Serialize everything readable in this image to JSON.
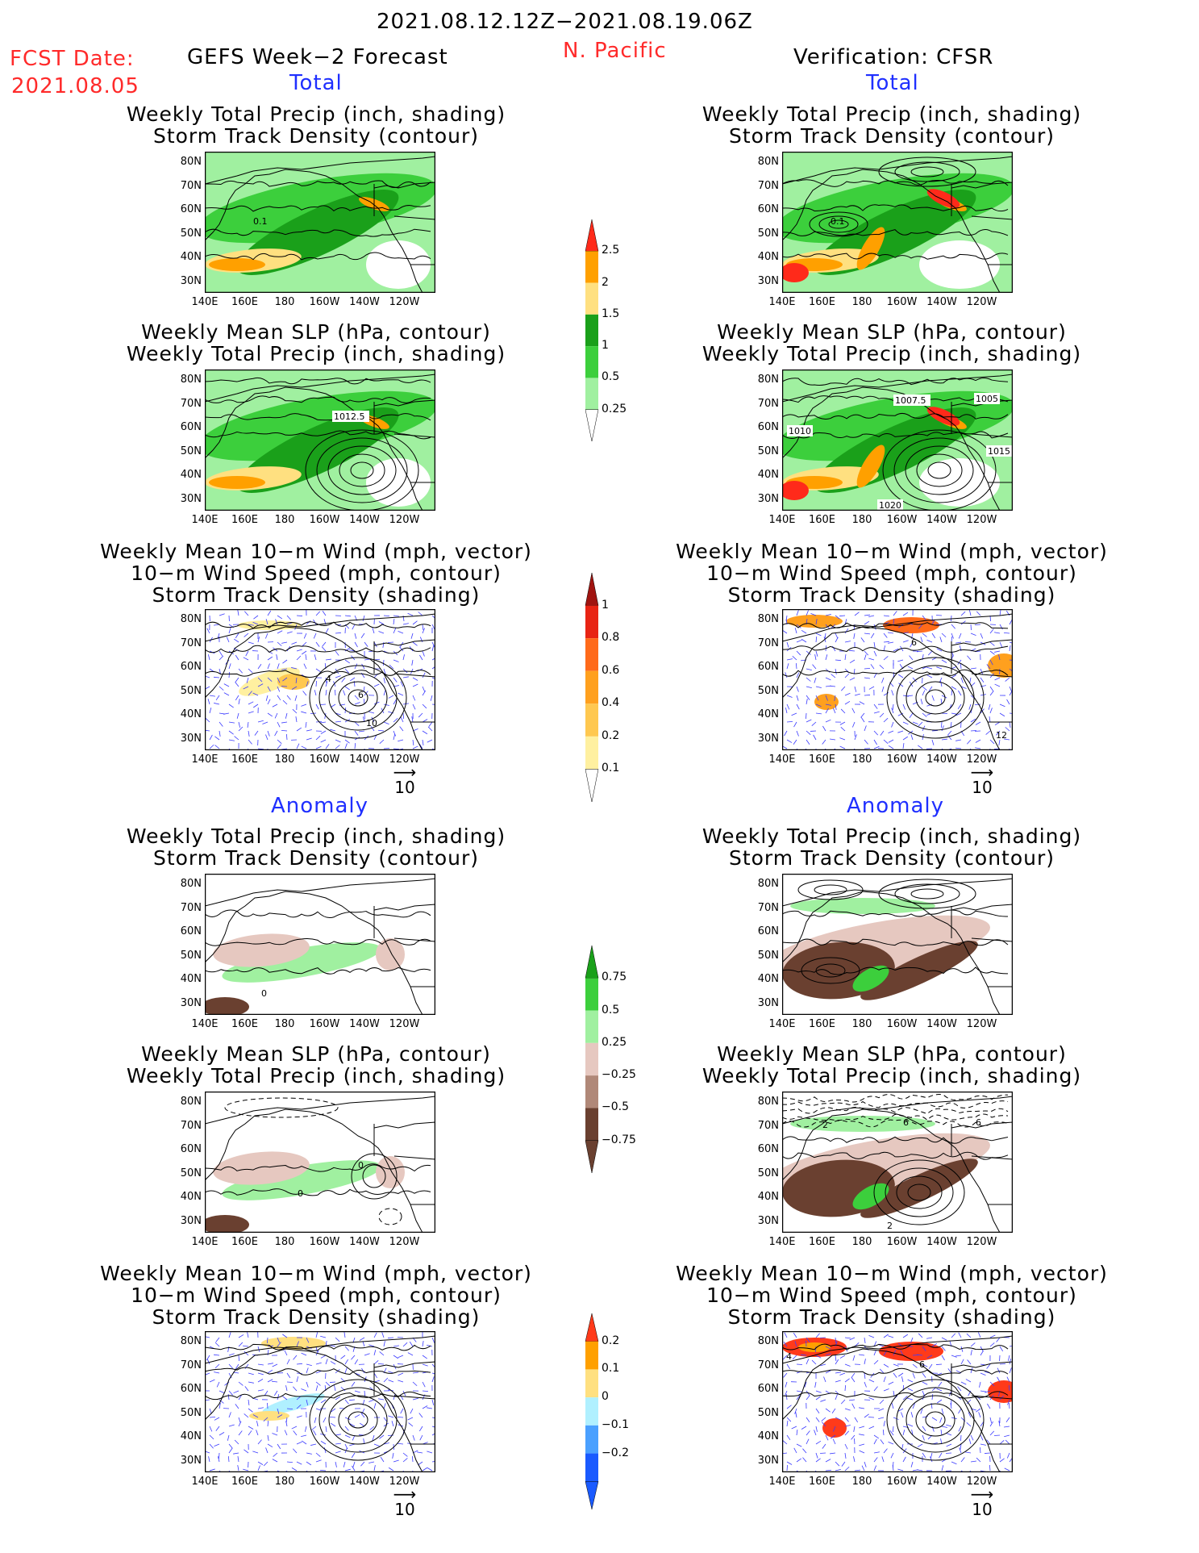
{
  "header": {
    "period": "2021.08.12.12Z−2021.08.19.06Z",
    "fcst_label": "FCST Date:",
    "fcst_date": "2021.08.05",
    "left_title": "GEFS Week−2 Forecast",
    "region": "N. Pacific",
    "right_title": "Verification: CFSR"
  },
  "sections": {
    "total": "Total",
    "anomaly": "Anomaly"
  },
  "panel_titles": {
    "precip_storm": [
      "Weekly Total Precip (inch, shading)",
      "Storm Track Density (contour)"
    ],
    "slp_precip": [
      "Weekly Mean SLP (hPa, contour)",
      "Weekly Total Precip (inch, shading)"
    ],
    "wind_storm": [
      "Weekly Mean 10−m Wind (mph, vector)",
      "10−m Wind Speed (mph, contour)",
      "Storm Track Density (shading)"
    ]
  },
  "axes": {
    "lat_labels": [
      "80N",
      "70N",
      "60N",
      "50N",
      "40N",
      "30N"
    ],
    "lon_labels": [
      "140E",
      "160E",
      "180",
      "160W",
      "140W",
      "120W"
    ]
  },
  "contour_labels": {
    "gefs_storm": "0.1",
    "gefs_slp": "1012.5",
    "cfsr_slp": [
      "1007.5",
      "1005",
      "1010",
      "1015",
      "1020"
    ],
    "gefs_wind_total": [
      "4",
      "6",
      "10"
    ],
    "cfsr_wind_total": [
      "6",
      "12"
    ],
    "anom_precip_gefs": "0",
    "anom_slp_gefs": [
      "0",
      "0"
    ],
    "anom_slp_cfsr": [
      "2",
      "6",
      "6",
      "2"
    ],
    "anom_wind_cfsr": [
      "4",
      "6"
    ]
  },
  "vector_reference": "10",
  "colorbars": {
    "precip_total": {
      "labels": [
        "2.5",
        "2",
        "1.5",
        "1",
        "0.5",
        "0.25"
      ],
      "colors": [
        "#ff2a1a",
        "#ffa000",
        "#ffe080",
        "#1aa01a",
        "#3ccf3c",
        "#a0f0a0"
      ]
    },
    "storm_total": {
      "labels": [
        "1",
        "0.8",
        "0.6",
        "0.4",
        "0.2",
        "0.1"
      ],
      "colors": [
        "#a01410",
        "#e82414",
        "#ff6a1a",
        "#ffa01e",
        "#ffc850",
        "#fff0a0"
      ]
    },
    "precip_anom": {
      "labels": [
        "0.75",
        "0.5",
        "0.25",
        "−0.25",
        "−0.5",
        "−0.75"
      ],
      "colors": [
        "#1aa01a",
        "#3ccf3c",
        "#a0f0a0",
        "#e6c8c0",
        "#b08878",
        "#6a4030"
      ]
    },
    "storm_anom": {
      "labels": [
        "0.2",
        "0.1",
        "0",
        "−0.1",
        "−0.2"
      ],
      "colors": [
        "#ff3a1a",
        "#ffa000",
        "#ffe080",
        "#b0f0ff",
        "#4aa0ff",
        "#1a5aff"
      ]
    }
  },
  "colors": {
    "land_line": "#000000",
    "vector": "#3a3aff",
    "header_red": "#ff2a2a",
    "section_blue": "#1f2fff"
  }
}
